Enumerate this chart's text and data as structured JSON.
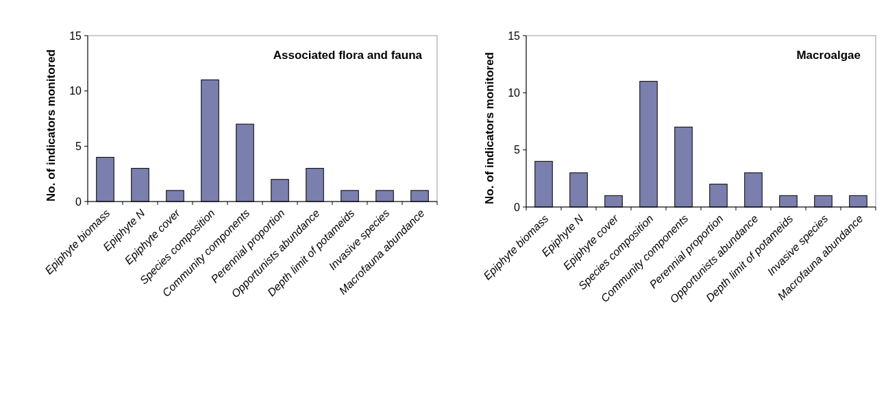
{
  "chart_data": [
    {
      "type": "bar",
      "title": "Associated flora and fauna",
      "ylabel": "No. of indicators monitored",
      "categories": [
        "Epiphyte biomass",
        "Epiphyte N",
        "Epiphyte cover",
        "Species composition",
        "Community components",
        "Perennial proportion",
        "Opportunists abundance",
        "Depth limit of potameids",
        "Invasive species",
        "Macrofauna abundance"
      ],
      "values": [
        4,
        3,
        1,
        11,
        7,
        2,
        3,
        1,
        1,
        1
      ],
      "color": "#7a7fad",
      "ylim": [
        0,
        15
      ],
      "yticks": [
        0,
        5,
        10,
        15
      ],
      "grid": false
    },
    {
      "type": "bar",
      "title": "Macroalgae",
      "ylabel": "No. of indicators monitored",
      "categories": [
        "Epiphyte biomass",
        "Epiphyte N",
        "Epiphyte cover",
        "Species composition",
        "Community components",
        "Perennial proportion",
        "Opportunists abundance",
        "Depth limit of potameids",
        "Invasive species",
        "Macrofauna abundance"
      ],
      "values": [
        4,
        3,
        1,
        11,
        7,
        2,
        3,
        1,
        1,
        1
      ],
      "color": "#7a7fad",
      "ylim": [
        0,
        15
      ],
      "yticks": [
        0,
        5,
        10,
        15
      ],
      "grid": false
    }
  ]
}
